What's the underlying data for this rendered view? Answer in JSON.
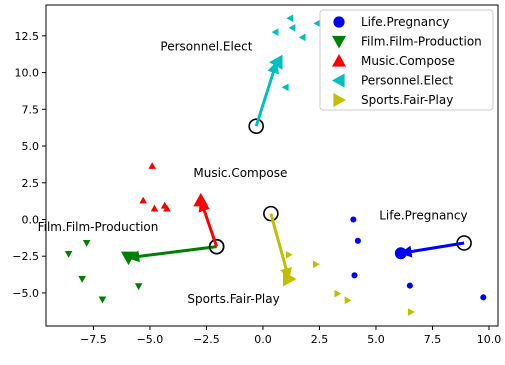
{
  "chart_data": {
    "type": "scatter",
    "title": "",
    "xlabel": "",
    "ylabel": "",
    "xlim": [
      -9.6,
      10.4
    ],
    "ylim": [
      -7.25,
      14.6
    ],
    "xticks": [
      -7.5,
      -5.0,
      -2.5,
      0.0,
      2.5,
      5.0,
      7.5,
      10.0
    ],
    "yticks": [
      -5.0,
      -2.5,
      0.0,
      2.5,
      5.0,
      7.5,
      10.0,
      12.5
    ],
    "xtick_labels": [
      "−7.5",
      "−5.0",
      "−2.5",
      "0.0",
      "2.5",
      "5.0",
      "7.5",
      "10.0"
    ],
    "ytick_labels": [
      "−5.0",
      "−2.5",
      "0.0",
      "2.5",
      "5.0",
      "7.5",
      "10.0",
      "12.5"
    ],
    "grid": false,
    "legend_position": "top-right",
    "series": [
      {
        "name": "Life.Pregnancy",
        "marker": "circle",
        "color": "#0000ff",
        "points": [
          [
            4.0,
            0.0
          ],
          [
            4.2,
            -1.45
          ],
          [
            4.05,
            -3.8
          ],
          [
            6.5,
            -4.5
          ],
          [
            9.75,
            -5.3
          ]
        ],
        "origin": [
          8.9,
          -1.6
        ],
        "centroid": [
          6.1,
          -2.3
        ],
        "label": "Life.Pregnancy",
        "label_at": [
          7.1,
          0.0
        ]
      },
      {
        "name": "Film.Film-Production",
        "marker": "triangle-down",
        "color": "#008000",
        "points": [
          [
            -8.6,
            -2.35
          ],
          [
            -7.8,
            -1.6
          ],
          [
            -8.0,
            -4.05
          ],
          [
            -7.1,
            -5.45
          ],
          [
            -5.5,
            -4.55
          ]
        ],
        "origin": [
          -2.05,
          -1.85
        ],
        "centroid": [
          -5.95,
          -2.6
        ],
        "label": "Film.Film-Production",
        "label_at": [
          -7.3,
          -0.8
        ]
      },
      {
        "name": "Music.Compose",
        "marker": "triangle-up",
        "color": "#ff0000",
        "points": [
          [
            -4.9,
            3.65
          ],
          [
            -5.3,
            1.3
          ],
          [
            -4.8,
            0.75
          ],
          [
            -4.35,
            0.95
          ],
          [
            -4.25,
            0.75
          ]
        ],
        "origin": [
          -2.05,
          -1.85
        ],
        "centroid": [
          -2.75,
          1.3
        ],
        "label": "Music.Compose",
        "label_at": [
          -1.0,
          2.9
        ]
      },
      {
        "name": "Personnel.Elect",
        "marker": "triangle-left",
        "color": "#00bfbf",
        "points": [
          [
            1.2,
            13.7
          ],
          [
            1.3,
            13.05
          ],
          [
            2.4,
            13.35
          ],
          [
            0.55,
            12.75
          ],
          [
            1.75,
            12.4
          ],
          [
            1.0,
            9.0
          ]
        ],
        "origin": [
          -0.3,
          6.35
        ],
        "centroid": [
          0.6,
          10.7
        ],
        "label": "Personnel.Elect",
        "label_at": [
          -2.5,
          11.5
        ]
      },
      {
        "name": "Sports.Fair-Play",
        "marker": "triangle-right",
        "color": "#bfbf00",
        "points": [
          [
            1.15,
            -2.4
          ],
          [
            2.35,
            -3.05
          ],
          [
            3.3,
            -5.05
          ],
          [
            3.75,
            -5.5
          ],
          [
            6.55,
            -6.3
          ]
        ],
        "origin": [
          0.35,
          0.4
        ],
        "centroid": [
          1.15,
          -4.05
        ],
        "label": "Sports.Fair-Play",
        "label_at": [
          -1.3,
          -5.7
        ]
      }
    ]
  }
}
